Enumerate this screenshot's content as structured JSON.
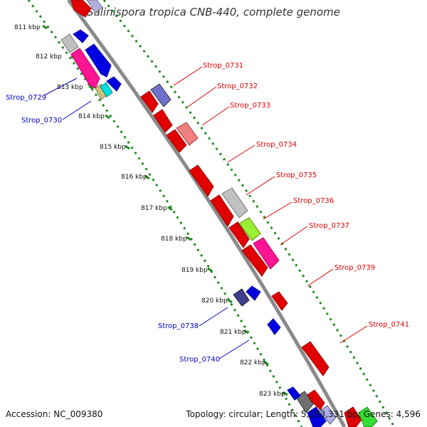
{
  "title": "Salinispora tropica CNB-440, complete genome",
  "footer": {
    "accession": "Accession: NC_009380",
    "summary": "Topology: circular; Length: 5,183,331 bp; Genes: 4,596"
  },
  "ticks": [
    "811 kbp",
    "812 kbp",
    "813 kbp",
    "814 kbp",
    "815 kbp",
    "816 kbp",
    "817 kbp",
    "818 kbp",
    "819 kbp",
    "820 kbp",
    "821 kbp",
    "822 kbp",
    "823 kbp"
  ],
  "forward_labels": [
    "Strop_0731",
    "Strop_0732",
    "Strop_0733",
    "Strop_0734",
    "Strop_0735",
    "Strop_0736",
    "Strop_0737",
    "Strop_0739",
    "Strop_0741"
  ],
  "reverse_labels": [
    "Strop_0729",
    "Strop_0730",
    "Strop_0738",
    "Strop_0740"
  ],
  "colors": {
    "forward_label": "#dd0000",
    "reverse_label": "#0000bb",
    "backbone": "#888888",
    "dots": "#228b22"
  }
}
